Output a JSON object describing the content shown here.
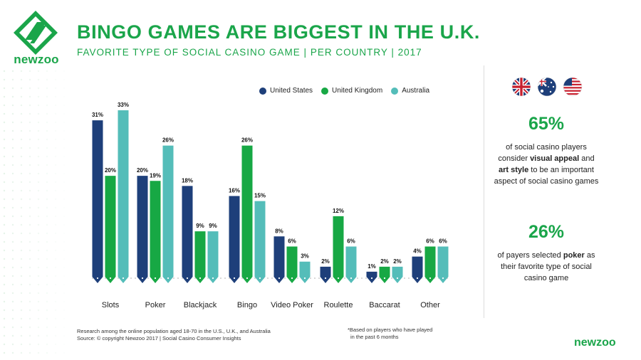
{
  "header": {
    "title": "BINGO GAMES ARE BIGGEST IN THE U.K.",
    "subtitle": "FAVORITE TYPE OF SOCIAL CASINO GAME | PER COUNTRY | 2017",
    "brand": "newzoo"
  },
  "colors": {
    "us": "#1e3f7a",
    "uk": "#17a844",
    "au": "#54bdb9",
    "accent": "#1aa54a"
  },
  "chart_data": {
    "type": "bar",
    "categories": [
      "Slots",
      "Poker",
      "Blackjack",
      "Bingo",
      "Video Poker",
      "Roulette",
      "Baccarat",
      "Other"
    ],
    "series": [
      {
        "name": "United States",
        "values": [
          31,
          20,
          18,
          16,
          8,
          2,
          1,
          4
        ],
        "labels": [
          "31%",
          "20%",
          "18%",
          "16%",
          "8%",
          "2%",
          "1%",
          "4%"
        ]
      },
      {
        "name": "United Kingdom",
        "values": [
          20,
          19,
          9,
          26,
          6,
          12,
          2,
          6
        ],
        "labels": [
          "20%",
          "19%",
          "9%",
          "26%",
          "6%",
          "12%",
          "2%",
          "6%"
        ]
      },
      {
        "name": "Australia",
        "values": [
          33,
          26,
          9,
          15,
          3,
          6,
          2,
          6
        ],
        "labels": [
          "33%",
          "26%",
          "9%",
          "15%",
          "3%",
          "6%",
          "2%",
          "6%"
        ]
      }
    ],
    "ylim": [
      0,
      33
    ],
    "grid": false,
    "legend": "top"
  },
  "stats": [
    {
      "value": "65%",
      "pre": "of social casino players consider ",
      "b1": "visual appeal",
      "mid": " and ",
      "b2": "art style",
      "post": " to be an important aspect of social casino games"
    },
    {
      "value": "26%",
      "pre": "of payers selected ",
      "b1": "poker",
      "mid": " as their favorite type of social casino game",
      "b2": "",
      "post": ""
    }
  ],
  "footer": {
    "research_line": "Research among the online population aged 18-70 in the U.S., U.K., and Australia",
    "source_line": "Source: © copyright Newzoo 2017 | Social Casino Consumer Insights",
    "note_line1": "*Based on players who have played",
    "note_line2": "in the past 6 months",
    "brand": "newzoo"
  }
}
